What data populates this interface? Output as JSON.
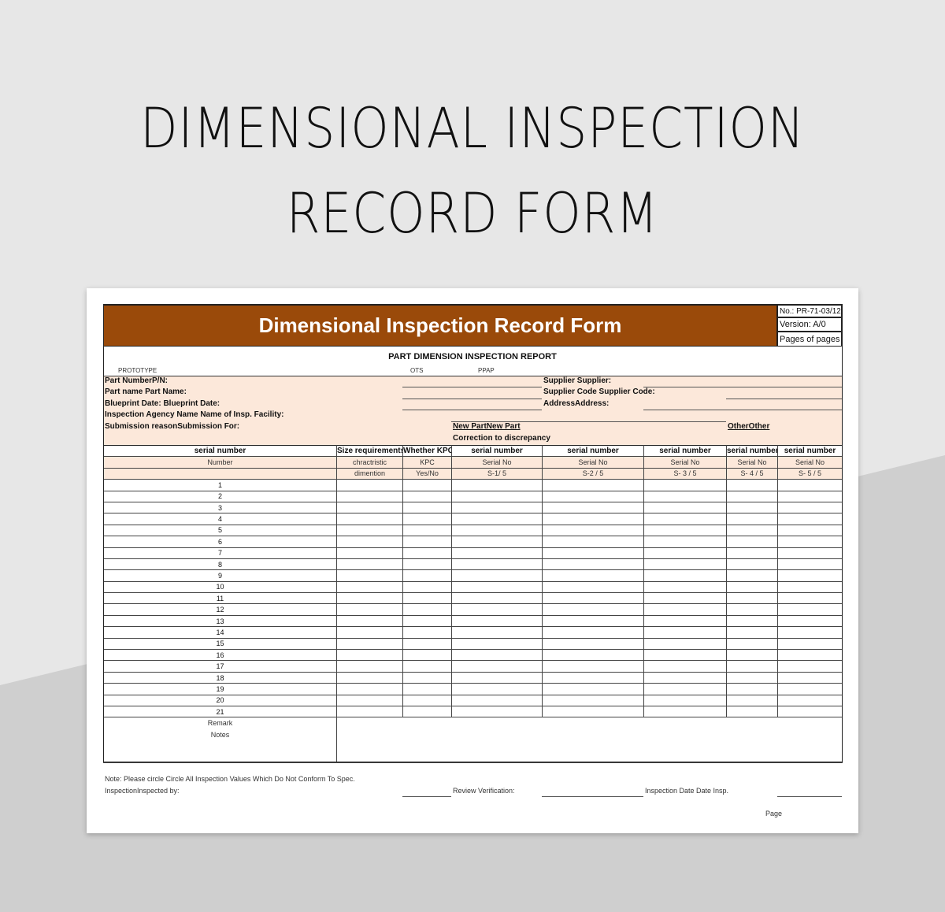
{
  "banner": {
    "line1": "DIMENSIONAL INSPECTION",
    "line2": "RECORD FORM"
  },
  "form": {
    "title": "Dimensional Inspection Record Form",
    "doc_no": "No.: PR-71-03/12",
    "version": "Version: A/0",
    "pages": "Pages of pages",
    "report_title": "PART DIMENSION INSPECTION REPORT",
    "options": {
      "prototype": "PROTOTYPE",
      "ots": "OTS",
      "ppap": "PPAP"
    },
    "fields": {
      "part_number": "Part NumberP/N:",
      "part_name": "Part name Part Name:",
      "blueprint_date": "Blueprint Date: Blueprint Date:",
      "agency": "Inspection Agency Name Name of Insp. Facility:",
      "submission": "Submission reasonSubmission For:",
      "supplier": "Supplier Supplier:",
      "supplier_code": "Supplier Code Supplier Code:",
      "address": "AddressAddress:",
      "new_part": "New PartNew Part",
      "correction": "Correction to discrepancy",
      "other": "OtherOther"
    },
    "table": {
      "header": [
        "serial number",
        "Size requirements",
        "Whether KPC",
        "serial number",
        "serial number",
        "serial number",
        "serial number",
        "serial number"
      ],
      "sub1": [
        "Number",
        "chractristic",
        "KPC",
        "Serial No",
        "Serial No",
        "Serial No",
        "Serial No",
        "Serial No"
      ],
      "sub2": [
        "",
        "dimention",
        "Yes/No",
        "S-1/ 5",
        "S-2 / 5",
        "S- 3 / 5",
        "S- 4 / 5",
        "S- 5 / 5"
      ],
      "rows": [
        "1",
        "2",
        "3",
        "4",
        "5",
        "6",
        "7",
        "8",
        "9",
        "10",
        "11",
        "12",
        "13",
        "14",
        "15",
        "16",
        "17",
        "18",
        "19",
        "20",
        "21"
      ],
      "remark": "Remark",
      "notes": "Notes"
    },
    "footer": {
      "note": "Note: Please circle Circle All Inspection Values Which Do Not Conform To Spec.",
      "inspected_by": "InspectionInspected by:",
      "review": "Review Verification:",
      "date": "Inspection Date Date Insp.",
      "page": "Page"
    }
  },
  "colors": {
    "header": "#9a4a0a",
    "peach": "#fce8da",
    "background": "#e7e7e7"
  }
}
